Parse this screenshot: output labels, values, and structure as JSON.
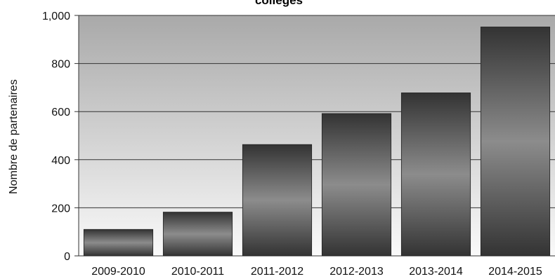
{
  "chart_data": {
    "type": "bar",
    "title": "collèges",
    "xlabel": "",
    "ylabel": "Nombre de partenaires",
    "categories": [
      "2009-2010",
      "2010-2011",
      "2011-2012",
      "2012-2013",
      "2013-2014",
      "2014-2015"
    ],
    "values": [
      110,
      182,
      463,
      592,
      678,
      952
    ],
    "ylim": [
      0,
      1000
    ],
    "yticks": [
      0,
      200,
      400,
      600,
      800,
      1000
    ],
    "ytick_labels": [
      "0",
      "200",
      "400",
      "600",
      "800",
      "1,000"
    ],
    "grid": true,
    "legend": "none",
    "colors": {
      "plot_bg_top": "#a9a9a9",
      "plot_bg_bottom": "#fafafa",
      "bar_dark": "#333333",
      "bar_light": "#8c8c8c",
      "grid": "#333333"
    }
  }
}
